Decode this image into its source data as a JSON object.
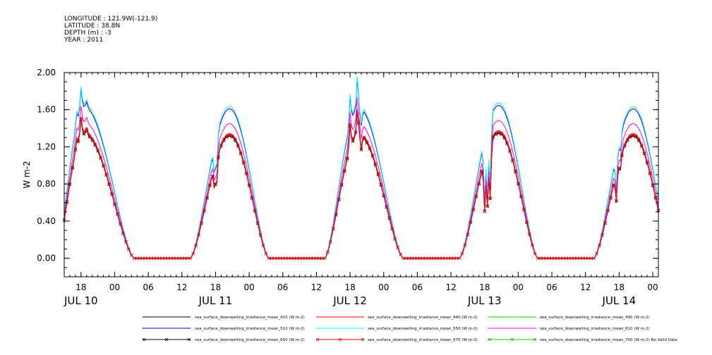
{
  "header": {
    "lines": [
      "LONGITUDE : 121.9W(-121.9)",
      "LATITUDE : 38.8N",
      "DEPTH (m) : -3",
      "YEAR : 2011"
    ]
  },
  "chart_data": {
    "type": "line",
    "ylabel": "W m-2",
    "ylim": [
      -0.2,
      2.0
    ],
    "y_ticks": [
      "0.00",
      "0.40",
      "0.80",
      "1.20",
      "1.60",
      "2.00"
    ],
    "x_hour_start": 15,
    "x_hour_end": 121,
    "x_hour_ticks": [
      {
        "h": 18,
        "label": "18"
      },
      {
        "h": 24,
        "label": "00"
      },
      {
        "h": 30,
        "label": "06"
      },
      {
        "h": 36,
        "label": "12"
      },
      {
        "h": 42,
        "label": "18"
      },
      {
        "h": 48,
        "label": "00"
      },
      {
        "h": 54,
        "label": "06"
      },
      {
        "h": 60,
        "label": "12"
      },
      {
        "h": 66,
        "label": "18"
      },
      {
        "h": 72,
        "label": "00"
      },
      {
        "h": 78,
        "label": "06"
      },
      {
        "h": 84,
        "label": "12"
      },
      {
        "h": 90,
        "label": "18"
      },
      {
        "h": 96,
        "label": "00"
      },
      {
        "h": 102,
        "label": "06"
      },
      {
        "h": 108,
        "label": "12"
      },
      {
        "h": 114,
        "label": "18"
      },
      {
        "h": 120,
        "label": "00"
      }
    ],
    "x_day_labels": [
      {
        "h": 15.5,
        "label": "JUL 10"
      },
      {
        "h": 39.5,
        "label": "JUL 11"
      },
      {
        "h": 63.5,
        "label": "JUL 12"
      },
      {
        "h": 87.5,
        "label": "JUL 13"
      },
      {
        "h": 111.5,
        "label": "JUL 14"
      }
    ],
    "days": [
      {
        "rise": 13.5,
        "peak": 18.5,
        "set": 27.5,
        "amp": 1.35,
        "spikes": [
          [
            18.0,
            0.18
          ],
          [
            17.2,
            0.1
          ],
          [
            19.0,
            0.05
          ]
        ]
      },
      {
        "rise": 37.5,
        "peak": 44.5,
        "set": 51.5,
        "amp": 1.33,
        "spikes": [
          [
            41.8,
            -0.25
          ],
          [
            42.2,
            -0.3
          ]
        ]
      },
      {
        "rise": 61.5,
        "peak": 67.5,
        "set": 75.5,
        "amp": 1.34,
        "spikes": [
          [
            66.0,
            0.25
          ],
          [
            67.3,
            0.3
          ],
          [
            68.0,
            -0.15
          ]
        ]
      },
      {
        "rise": 85.5,
        "peak": 92.5,
        "set": 99.5,
        "amp": 1.36,
        "spikes": [
          [
            90.0,
            -0.55
          ],
          [
            90.5,
            -0.6
          ],
          [
            91.0,
            -0.6
          ]
        ]
      },
      {
        "rise": 109.5,
        "peak": 116.5,
        "set": 123.5,
        "amp": 1.33,
        "spikes": [
          [
            113.5,
            -0.3
          ],
          [
            114.2,
            -0.15
          ]
        ]
      }
    ],
    "series": [
      {
        "name": "sea_surface_downwelling_irradiance_mean_410 (W m-2)",
        "color": "#000000",
        "factor": 1.0,
        "marker": false,
        "offset": 0.0
      },
      {
        "name": "sea_surface_downwelling_irradiance_mean_440 (W m-2)",
        "color": "#ff0000",
        "factor": 1.01,
        "marker": false,
        "offset": 0.0
      },
      {
        "name": "sea_surface_downwelling_irradiance_mean_490 (W m-2)",
        "color": "#00cc00",
        "factor": 1.0,
        "marker": false,
        "offset": 0.0,
        "no_data": true
      },
      {
        "name": "sea_surface_downwelling_irradiance_mean_510 (W m-2)",
        "color": "#0000ff",
        "factor": 1.21,
        "marker": false,
        "offset": 0.0
      },
      {
        "name": "sea_surface_downwelling_irradiance_mean_550 (W m-2)",
        "color": "#00ffff",
        "factor": 1.23,
        "marker": false,
        "offset": 0.0
      },
      {
        "name": "sea_surface_downwelling_irradiance_mean_610 (W m-2)",
        "color": "#ff00ff",
        "factor": 1.09,
        "marker": false,
        "offset": 0.0
      },
      {
        "name": "sea_surface_downwelling_irradiance_mean_650 (W m-2)",
        "color": "#000000",
        "factor": 0.99,
        "marker": true,
        "offset": 0.0
      },
      {
        "name": "sea_surface_downwelling_irradiance_mean_670 (W m-2)",
        "color": "#ff0000",
        "factor": 1.0,
        "marker": true,
        "offset": 0.0
      },
      {
        "name": "sea_surface_downwelling_irradiance_mean_700 (W m-2) No Valid Data",
        "color": "#00cc00",
        "factor": 1.0,
        "marker": true,
        "offset": 0.0,
        "no_data": true
      }
    ]
  }
}
